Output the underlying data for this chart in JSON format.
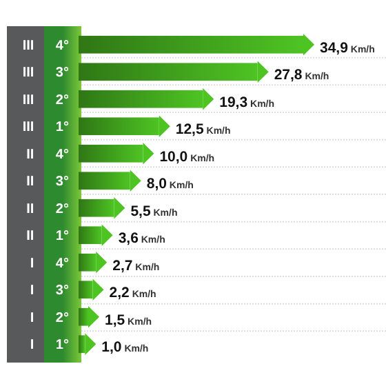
{
  "chart_data": {
    "type": "bar",
    "orientation": "horizontal",
    "categories": [
      "III 4°",
      "III 3°",
      "III 2°",
      "III 1°",
      "II 4°",
      "II 3°",
      "II 2°",
      "II 1°",
      "I 4°",
      "I 3°",
      "I 2°",
      "I 1°"
    ],
    "values": [
      34.9,
      27.8,
      19.3,
      12.5,
      10.0,
      8.0,
      5.5,
      3.6,
      2.7,
      2.2,
      1.5,
      1.0
    ],
    "value_labels": [
      "34,9 Km/h",
      "27,8 Km/h",
      "19,3 Km/h",
      "12,5 Km/h",
      "10,0 Km/h",
      "8,0 Km/h",
      "5,5 Km/h",
      "3,6 Km/h",
      "2,7 Km/h",
      "2,2 Km/h",
      "1,5 Km/h",
      "1,0 Km/h"
    ],
    "color": "#3f9e1c",
    "grid": "y"
  }
}
